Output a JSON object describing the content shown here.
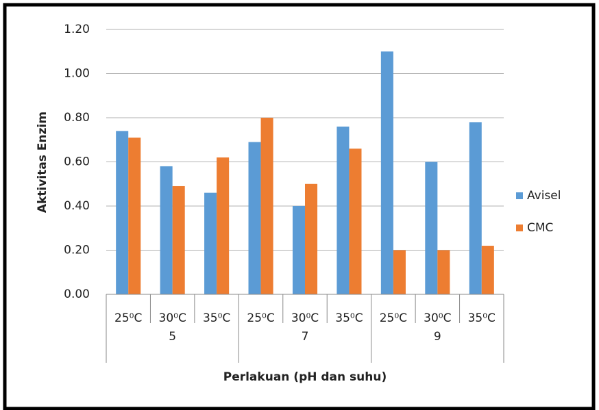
{
  "chart_data": {
    "type": "bar",
    "x_label": "Perlakuan (pH dan suhu)",
    "y_label": "Aktivitas Enzim",
    "categories": [
      "25⁰C",
      "30⁰C",
      "35⁰C",
      "25⁰C",
      "30⁰C",
      "35⁰C",
      "25⁰C",
      "30⁰C",
      "35⁰C"
    ],
    "groups": [
      "5",
      "7",
      "9"
    ],
    "series": [
      {
        "name": "Avisel",
        "color": "#5b9bd5",
        "values": [
          0.74,
          0.58,
          0.46,
          0.69,
          0.4,
          0.76,
          1.1,
          0.6,
          0.78
        ]
      },
      {
        "name": "CMC",
        "color": "#ed7d31",
        "values": [
          0.71,
          0.49,
          0.62,
          0.8,
          0.5,
          0.66,
          0.2,
          0.2,
          0.22
        ]
      }
    ],
    "ylim": [
      0,
      1.2
    ],
    "yticks": [
      {
        "value": 0,
        "label": "0.00"
      },
      {
        "value": 0.2,
        "label": "0.20"
      },
      {
        "value": 0.4,
        "label": "0.40"
      },
      {
        "value": 0.6,
        "label": "0.60"
      },
      {
        "value": 0.8,
        "label": "0.80"
      },
      {
        "value": 1.0,
        "label": "1.00"
      },
      {
        "value": 1.2,
        "label": "1.20"
      }
    ],
    "grid": true,
    "legend": "right"
  }
}
